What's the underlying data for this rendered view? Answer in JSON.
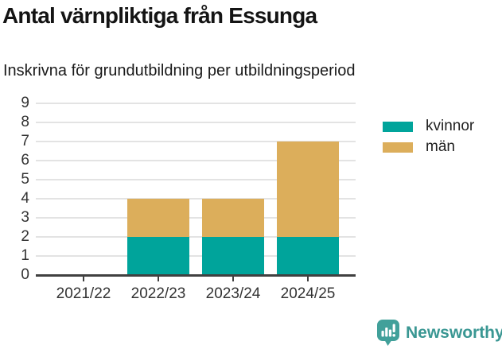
{
  "header": {
    "title": "Antal värnpliktiga från Essunga",
    "subtitle": "Inskrivna för grundutbildning per utbildningsperiod"
  },
  "chart_data": {
    "type": "bar",
    "stacked": true,
    "title": "Antal värnpliktiga från Essunga",
    "subtitle": "Inskrivna för grundutbildning per utbildningsperiod",
    "categories": [
      "2021/22",
      "2022/23",
      "2023/24",
      "2024/25"
    ],
    "series": [
      {
        "name": "kvinnor",
        "color": "#00a49b",
        "values": [
          0,
          2,
          2,
          2
        ]
      },
      {
        "name": "män",
        "color": "#dcae5b",
        "values": [
          0,
          2,
          2,
          5
        ]
      }
    ],
    "totals": [
      0,
      4,
      4,
      7
    ],
    "xlabel": "",
    "ylabel": "",
    "ylim": [
      0,
      9
    ],
    "ytick_step": 1,
    "yticks": [
      0,
      1,
      2,
      3,
      4,
      5,
      6,
      7,
      8,
      9
    ],
    "grid": true,
    "legend_position": "top-right"
  },
  "colors": {
    "axis": "#404040",
    "grid": "#e3e3e3",
    "tick_text": "#333333",
    "brand_teal": "#3a9793"
  },
  "footer": {
    "brand": "Newsworthy",
    "logo_icon": "bar-chart-speech-bubble-icon"
  }
}
